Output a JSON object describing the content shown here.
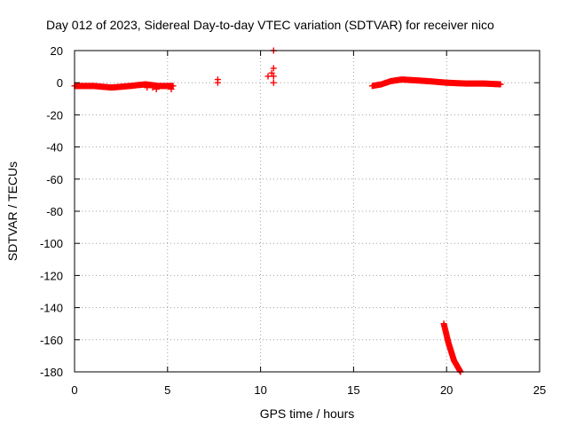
{
  "chart_data": {
    "type": "scatter",
    "title": "Day 012 of 2023, Sidereal Day-to-day VTEC variation (SDTVAR) for receiver nico",
    "xlabel": "GPS time / hours",
    "ylabel": "SDTVAR / TECUs",
    "xlim": [
      0,
      25
    ],
    "ylim": [
      -180,
      20
    ],
    "xticks": [
      0,
      5,
      10,
      15,
      20,
      25
    ],
    "yticks": [
      20,
      0,
      -20,
      -40,
      -60,
      -80,
      -100,
      -120,
      -140,
      -160,
      -180
    ],
    "grid": true,
    "marker": "plus",
    "color": "#ff0000",
    "series": [
      {
        "segments": [
          {
            "x_start": 0.0,
            "x_end": 5.3,
            "x_step": 0.05,
            "knots_x": [
              0.0,
              1.0,
              2.0,
              3.0,
              3.8,
              4.5,
              5.3
            ],
            "knots_y": [
              -2,
              -2,
              -3,
              -2,
              -1,
              -2,
              -2
            ]
          },
          {
            "x_start": 16.0,
            "x_end": 22.9,
            "x_step": 0.05,
            "knots_x": [
              16.0,
              16.5,
              17.0,
              17.6,
              18.3,
              19.0,
              19.5,
              20.0,
              21.0,
              22.0,
              22.9
            ],
            "knots_y": [
              -2,
              -1,
              1,
              2,
              1.5,
              1,
              0.5,
              0,
              -0.5,
              -0.5,
              -1
            ]
          },
          {
            "x_start": 19.85,
            "x_end": 20.75,
            "x_step": 0.015,
            "knots_x": [
              19.85,
              20.1,
              20.4,
              20.75
            ],
            "knots_y": [
              -150,
              -162,
              -173,
              -180
            ]
          }
        ],
        "points": [
          [
            4.4,
            -4
          ],
          [
            5.2,
            -4
          ],
          [
            4.2,
            -3
          ],
          [
            3.9,
            -3
          ],
          [
            7.7,
            2
          ],
          [
            7.7,
            0
          ],
          [
            10.4,
            4
          ],
          [
            10.6,
            6
          ],
          [
            10.7,
            20
          ],
          [
            10.7,
            9
          ],
          [
            10.7,
            4
          ],
          [
            10.7,
            0
          ]
        ]
      }
    ]
  }
}
